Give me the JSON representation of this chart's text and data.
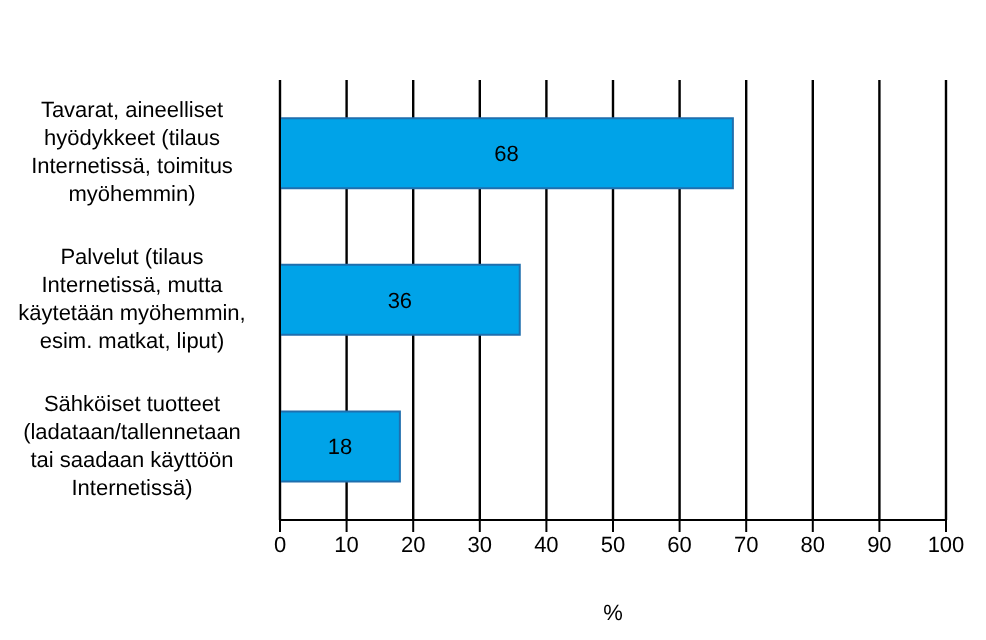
{
  "chart_data": {
    "type": "bar",
    "orientation": "horizontal",
    "categories": [
      "Tavarat, aineelliset hyödykkeet (tilaus Internetissä, toimitus myöhemmin)",
      "Palvelut (tilaus Internetissä, mutta käytetään myöhemmin, esim. matkat, liput)",
      "Sähköiset tuotteet (ladataan/tallennetaan tai saadaan käyttöön Internetissä)"
    ],
    "values": [
      68,
      36,
      18
    ],
    "color": "#00a3e8",
    "xlim": [
      0,
      100
    ],
    "xticks": [
      0,
      10,
      20,
      30,
      40,
      50,
      60,
      70,
      80,
      90,
      100
    ],
    "xlabel": "%",
    "grid": "x",
    "data_labels": true
  }
}
